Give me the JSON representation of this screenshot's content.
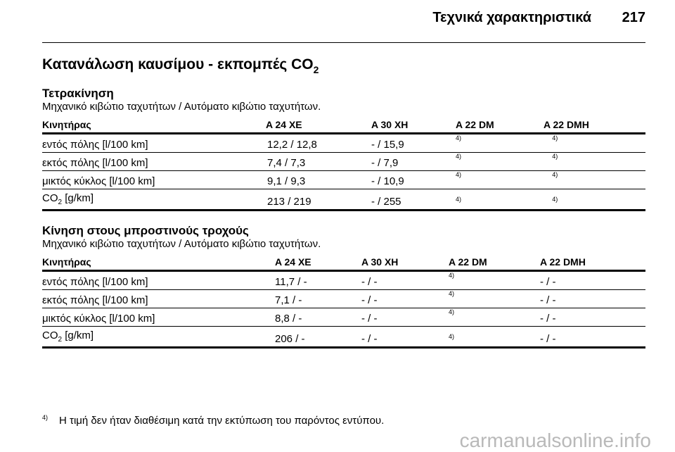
{
  "header": {
    "title": "Τεχνικά χαρακτηριστικά",
    "page": "217"
  },
  "main_title": {
    "text": "Κατανάλωση καυσίμου - εκπομπές CO",
    "sub": "2"
  },
  "sections": [
    {
      "title": "Τετρακίνηση",
      "subtitle": "Μηχανικό κιβώτιο ταχυτήτων / Αυτόματο κιβώτιο ταχυτήτων.",
      "columns": [
        "Κινητήρας",
        "A 24 XE",
        "A 30 XH",
        "A 22 DM",
        "A 22 DMH"
      ],
      "rows": [
        [
          "εντός πόλης [l/100 km]",
          "12,2 / 12,8",
          "- / 15,9",
          "4)",
          "4)"
        ],
        [
          "εκτός πόλης [l/100 km]",
          "7,4 / 7,3",
          "- / 7,9",
          "4)",
          "4)"
        ],
        [
          "μικτός κύκλος [l/100 km]",
          "9,1 / 9,3",
          "- / 10,9",
          "4)",
          "4)"
        ],
        [
          "CO",
          "213 / 219",
          "- / 255",
          "4)",
          "4)"
        ]
      ],
      "co2_sub": "2",
      "co2_unit": "[g/km]"
    },
    {
      "title": "Κίνηση στους μπροστινούς τροχούς",
      "subtitle": "Μηχανικό κιβώτιο ταχυτήτων / Αυτόματο κιβώτιο ταχυτήτων.",
      "columns": [
        "Κινητήρας",
        "A 24 XE",
        "A 30 XH",
        "A 22 DM",
        "A 22 DMH"
      ],
      "rows": [
        [
          "εντός πόλης [l/100 km]",
          "11,7 / -",
          "- / -",
          "4)",
          "- / -"
        ],
        [
          "εκτός πόλης [l/100 km]",
          "7,1 / -",
          "- / -",
          "4)",
          "- / -"
        ],
        [
          "μικτός κύκλος [l/100 km]",
          "8,8 / -",
          "- / -",
          "4)",
          "- / -"
        ],
        [
          "CO",
          "206 / -",
          "- / -",
          "4)",
          "- / -"
        ]
      ],
      "co2_sub": "2",
      "co2_unit": "[g/km]"
    }
  ],
  "footnote": {
    "mark": "4)",
    "text": "Η τιμή δεν ήταν διαθέσιμη κατά την εκτύπωση του παρόντος εντύπου."
  },
  "watermark": "carmanualsonline.info"
}
